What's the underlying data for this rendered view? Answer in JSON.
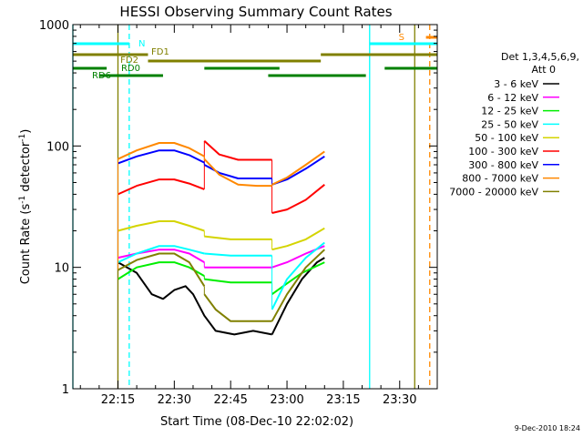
{
  "chart_data": {
    "type": "line",
    "title": "HESSI Observing Summary Count Rates",
    "xlabel": "Start Time (08-Dec-10 22:02:02)",
    "ylabel": "Count Rate (s",
    "ylabel_sup1": "-1",
    "ylabel_mid": " detector",
    "ylabel_sup2": "-1",
    "ylabel_end": ")",
    "y_scale": "log",
    "ylim": [
      1,
      1000
    ],
    "xlim": [
      "22:03",
      "23:40"
    ],
    "x_ticks": [
      "22:15",
      "22:30",
      "22:45",
      "23:00",
      "23:15",
      "23:30"
    ],
    "y_ticks": [
      "1",
      "10",
      "100",
      "1000"
    ],
    "timestamp": "9-Dec-2010 18:24",
    "legend": {
      "header1": "Det 1,3,4,5,6,9,",
      "header2": "Att 0",
      "placement": "right",
      "entries": [
        {
          "label": "3 - 6 keV",
          "color": "#000000"
        },
        {
          "label": "6 - 12 keV",
          "color": "#ff00ff"
        },
        {
          "label": "12 - 25 keV",
          "color": "#00ee00"
        },
        {
          "label": "25 - 50 keV",
          "color": "#00ffff"
        },
        {
          "label": "50 - 100 keV",
          "color": "#d4d400"
        },
        {
          "label": "100 - 300 keV",
          "color": "#ff0000"
        },
        {
          "label": "300 - 800 keV",
          "color": "#0000ff"
        },
        {
          "label": "800 - 7000 keV",
          "color": "#ff8800"
        },
        {
          "label": "7000 - 20000 keV",
          "color": "#808000"
        }
      ]
    },
    "series": [
      {
        "name": "3 - 6 keV",
        "color": "#000000",
        "segments": [
          [
            [
              "22:15",
              11
            ],
            [
              "22:20",
              9
            ],
            [
              "22:24",
              6
            ],
            [
              "22:27",
              5.5
            ],
            [
              "22:30",
              6.5
            ],
            [
              "22:33",
              7
            ],
            [
              "22:35",
              6
            ],
            [
              "22:38",
              4
            ],
            [
              "22:41",
              3
            ],
            [
              "22:46",
              2.8
            ],
            [
              "22:51",
              3
            ],
            [
              "22:56",
              2.8
            ]
          ],
          [
            [
              "22:56",
              2.8
            ],
            [
              "23:00",
              5
            ],
            [
              "23:04",
              8
            ],
            [
              "23:08",
              11
            ],
            [
              "23:10",
              12
            ]
          ]
        ]
      },
      {
        "name": "6 - 12 keV",
        "color": "#ff00ff",
        "segments": [
          [
            [
              "22:15",
              12
            ],
            [
              "22:20",
              13
            ],
            [
              "22:26",
              14
            ],
            [
              "22:30",
              14
            ],
            [
              "22:34",
              13
            ],
            [
              "22:38",
              11
            ]
          ],
          [
            [
              "22:38",
              10
            ],
            [
              "22:45",
              10
            ],
            [
              "22:51",
              10
            ],
            [
              "22:56",
              10
            ]
          ],
          [
            [
              "22:56",
              10
            ],
            [
              "23:00",
              11
            ],
            [
              "23:05",
              13
            ],
            [
              "23:10",
              15
            ]
          ]
        ]
      },
      {
        "name": "12 - 25 keV",
        "color": "#00ee00",
        "segments": [
          [
            [
              "22:15",
              8
            ],
            [
              "22:20",
              10
            ],
            [
              "22:26",
              11
            ],
            [
              "22:30",
              11
            ],
            [
              "22:34",
              10
            ],
            [
              "22:38",
              8.5
            ]
          ],
          [
            [
              "22:38",
              8
            ],
            [
              "22:45",
              7.5
            ],
            [
              "22:51",
              7.5
            ],
            [
              "22:56",
              7.5
            ]
          ],
          [
            [
              "22:56",
              6
            ],
            [
              "22:59",
              7
            ],
            [
              "23:04",
              9
            ],
            [
              "23:10",
              11
            ]
          ]
        ]
      },
      {
        "name": "25 - 50 keV",
        "color": "#00ffff",
        "segments": [
          [
            [
              "22:15",
              11
            ],
            [
              "22:20",
              13
            ],
            [
              "22:26",
              15
            ],
            [
              "22:30",
              15
            ],
            [
              "22:34",
              14
            ],
            [
              "22:38",
              13
            ]
          ],
          [
            [
              "22:38",
              13
            ],
            [
              "22:45",
              12.5
            ],
            [
              "22:51",
              12.5
            ],
            [
              "22:56",
              12.5
            ]
          ],
          [
            [
              "22:56",
              4.5
            ],
            [
              "23:00",
              8
            ],
            [
              "23:05",
              12
            ],
            [
              "23:10",
              16
            ]
          ]
        ]
      },
      {
        "name": "50 - 100 keV",
        "color": "#d4d400",
        "segments": [
          [
            [
              "22:15",
              20
            ],
            [
              "22:20",
              22
            ],
            [
              "22:26",
              24
            ],
            [
              "22:30",
              24
            ],
            [
              "22:34",
              22
            ],
            [
              "22:38",
              20
            ]
          ],
          [
            [
              "22:38",
              18
            ],
            [
              "22:45",
              17
            ],
            [
              "22:51",
              17
            ],
            [
              "22:56",
              17
            ]
          ],
          [
            [
              "22:56",
              14
            ],
            [
              "23:00",
              15
            ],
            [
              "23:05",
              17
            ],
            [
              "23:10",
              21
            ]
          ]
        ]
      },
      {
        "name": "100 - 300 keV",
        "color": "#ff0000",
        "segments": [
          [
            [
              "22:15",
              40
            ],
            [
              "22:20",
              47
            ],
            [
              "22:26",
              53
            ],
            [
              "22:30",
              53
            ],
            [
              "22:34",
              49
            ],
            [
              "22:38",
              44
            ]
          ],
          [
            [
              "22:38",
              110
            ],
            [
              "22:42",
              85
            ],
            [
              "22:47",
              77
            ],
            [
              "22:52",
              77
            ],
            [
              "22:56",
              77
            ]
          ],
          [
            [
              "22:56",
              28
            ],
            [
              "23:00",
              30
            ],
            [
              "23:05",
              36
            ],
            [
              "23:10",
              48
            ]
          ]
        ]
      },
      {
        "name": "300 - 800 keV",
        "color": "#0000ff",
        "segments": [
          [
            [
              "22:15",
              72
            ],
            [
              "22:20",
              82
            ],
            [
              "22:26",
              92
            ],
            [
              "22:30",
              92
            ],
            [
              "22:34",
              84
            ],
            [
              "22:38",
              73
            ]
          ],
          [
            [
              "22:38",
              70
            ],
            [
              "22:42",
              60
            ],
            [
              "22:47",
              54
            ],
            [
              "22:52",
              54
            ],
            [
              "22:56",
              54
            ]
          ],
          [
            [
              "22:56",
              48
            ],
            [
              "23:00",
              53
            ],
            [
              "23:05",
              65
            ],
            [
              "23:10",
              82
            ]
          ]
        ]
      },
      {
        "name": "800 - 7000 keV",
        "color": "#ff8800",
        "segments": [
          [
            [
              "22:15",
              78
            ],
            [
              "22:20",
              92
            ],
            [
              "22:26",
              106
            ],
            [
              "22:30",
              106
            ],
            [
              "22:34",
              96
            ],
            [
              "22:38",
              82
            ]
          ],
          [
            [
              "22:38",
              78
            ],
            [
              "22:42",
              58
            ],
            [
              "22:47",
              48
            ],
            [
              "22:52",
              47
            ],
            [
              "22:56",
              47
            ]
          ],
          [
            [
              "22:56",
              48
            ],
            [
              "23:00",
              55
            ],
            [
              "23:05",
              70
            ],
            [
              "23:10",
              90
            ]
          ]
        ]
      },
      {
        "name": "7000 - 20000 keV",
        "color": "#808000",
        "segments": [
          [
            [
              "22:15",
              9.5
            ],
            [
              "22:20",
              11.5
            ],
            [
              "22:26",
              13
            ],
            [
              "22:30",
              13
            ],
            [
              "22:34",
              11
            ],
            [
              "22:38",
              7
            ]
          ],
          [
            [
              "22:38",
              6
            ],
            [
              "22:41",
              4.5
            ],
            [
              "22:45",
              3.6
            ],
            [
              "22:51",
              3.6
            ],
            [
              "22:56",
              3.6
            ]
          ],
          [
            [
              "22:56",
              3.6
            ],
            [
              "23:00",
              6
            ],
            [
              "23:05",
              10
            ],
            [
              "23:10",
              14
            ]
          ]
        ]
      }
    ],
    "flag_bars": [
      {
        "label": "N",
        "color": "#00ffff",
        "intervals": [
          [
            "22:03",
            "22:18"
          ],
          [
            "23:22",
            "23:40"
          ]
        ]
      },
      {
        "label": "S",
        "color": "#ff8800",
        "intervals": [
          [
            "23:37",
            "23:40"
          ]
        ]
      },
      {
        "label": "FD1",
        "color": "#808000",
        "intervals": [
          [
            "22:03",
            "22:23"
          ],
          [
            "23:09",
            "23:40"
          ]
        ]
      },
      {
        "label": "FD2",
        "color": "#808000",
        "intervals": [
          [
            "22:23",
            "23:09"
          ]
        ]
      },
      {
        "label": "RD0",
        "color": "#008000",
        "intervals": [
          [
            "22:03",
            "22:12"
          ],
          [
            "22:38",
            "22:58"
          ],
          [
            "23:26",
            "23:40"
          ]
        ]
      },
      {
        "label": "RD6",
        "color": "#008000",
        "intervals": [
          [
            "22:03",
            "22:03"
          ],
          [
            "22:10",
            "22:27"
          ],
          [
            "22:55",
            "23:21"
          ]
        ]
      }
    ],
    "vertical_markers": [
      {
        "time": "22:03",
        "color": "#00ffff",
        "style": "solid"
      },
      {
        "time": "22:18",
        "color": "#00ffff",
        "style": "dashed"
      },
      {
        "time": "23:22",
        "color": "#00ffff",
        "style": "solid"
      },
      {
        "time": "22:15",
        "color": "#808000",
        "style": "solid"
      },
      {
        "time": "23:34",
        "color": "#808000",
        "style": "solid"
      },
      {
        "time": "23:38",
        "color": "#ff8800",
        "style": "dashed"
      }
    ]
  }
}
